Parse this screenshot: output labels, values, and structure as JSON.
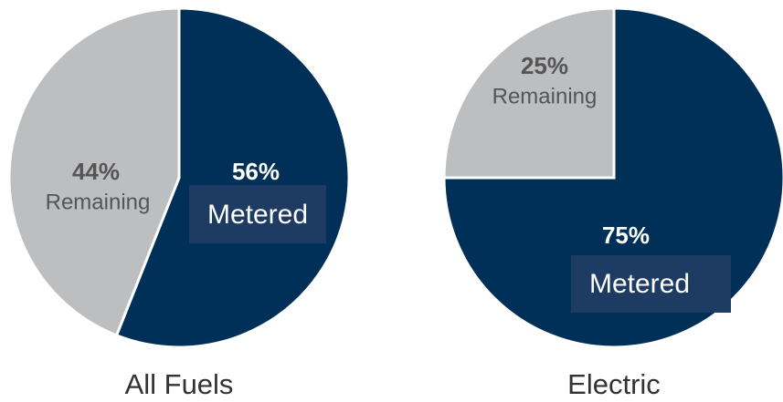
{
  "chart_data": [
    {
      "type": "pie",
      "title": "All Fuels",
      "categories": [
        "Metered",
        "Remaining"
      ],
      "values": [
        56,
        44
      ],
      "value_labels": [
        "56%",
        "44%"
      ],
      "colors": [
        "#003057",
        "#bdbec0"
      ]
    },
    {
      "type": "pie",
      "title": "Electric",
      "categories": [
        "Metered",
        "Remaining"
      ],
      "values": [
        75,
        25
      ],
      "value_labels": [
        "75%",
        "25%"
      ],
      "colors": [
        "#003057",
        "#bdbec0"
      ]
    }
  ]
}
